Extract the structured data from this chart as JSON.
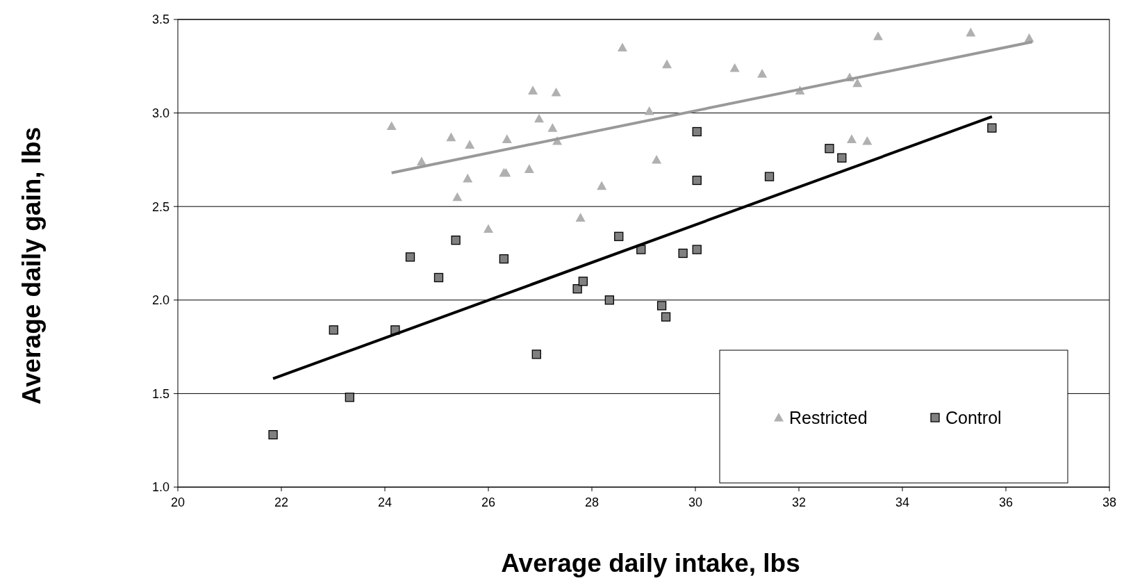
{
  "chart_data": {
    "type": "scatter",
    "xlabel": "Average daily intake, lbs",
    "ylabel": "Average daily gain, lbs",
    "xlim": [
      20,
      38
    ],
    "xticks": [
      20,
      22,
      24,
      26,
      28,
      30,
      32,
      34,
      36,
      38
    ],
    "ylim": [
      1.0,
      3.5
    ],
    "yticks": [
      {
        "value": 1.0,
        "label": "1.0"
      },
      {
        "value": 1.5,
        "label": "1.5"
      },
      {
        "value": 2.0,
        "label": "2.0"
      },
      {
        "value": 2.5,
        "label": "2.5"
      },
      {
        "value": 3.0,
        "label": "3.0"
      },
      {
        "value": 3.5,
        "label": "3.5"
      }
    ],
    "grid": "y",
    "legend": "bottom right",
    "series": [
      {
        "name": "Restricted",
        "marker": "triangle",
        "color": "#b0b0b0",
        "x": [
          24.13,
          24.71,
          25.28,
          25.4,
          25.6,
          25.64,
          26.0,
          26.3,
          26.36,
          26.34,
          26.79,
          26.86,
          26.98,
          27.24,
          27.31,
          27.33,
          27.78,
          28.19,
          28.59,
          29.11,
          29.25,
          29.45,
          30.76,
          31.29,
          32.02,
          32.98,
          33.02,
          33.13,
          33.32,
          33.53,
          35.32,
          36.45
        ],
        "values": [
          2.93,
          2.74,
          2.87,
          2.55,
          2.65,
          2.83,
          2.38,
          2.68,
          2.86,
          2.68,
          2.7,
          3.12,
          2.97,
          2.92,
          3.11,
          2.85,
          2.44,
          2.61,
          3.35,
          3.01,
          2.75,
          3.26,
          3.24,
          3.21,
          3.12,
          3.19,
          2.86,
          3.16,
          2.85,
          3.41,
          3.43,
          3.4
        ]
      },
      {
        "name": "Control",
        "marker": "square",
        "color": "#808080",
        "x": [
          21.84,
          23.01,
          23.32,
          24.2,
          24.49,
          25.04,
          25.37,
          26.3,
          26.93,
          27.72,
          27.83,
          28.34,
          28.52,
          28.95,
          29.35,
          29.43,
          29.76,
          30.03,
          30.03,
          30.03,
          31.43,
          32.59,
          32.83,
          35.73
        ],
        "values": [
          1.28,
          1.84,
          1.48,
          1.84,
          2.23,
          2.12,
          2.32,
          2.22,
          1.71,
          2.06,
          2.1,
          2.0,
          2.34,
          2.27,
          1.97,
          1.91,
          2.25,
          2.27,
          2.9,
          2.64,
          2.66,
          2.81,
          2.76,
          2.92
        ]
      },
      {
        "type": "line",
        "color": "#999999",
        "x": [
          24.13,
          36.51
        ],
        "values": [
          2.68,
          3.38
        ]
      },
      {
        "type": "line",
        "color": "#000000",
        "x": [
          21.84,
          35.73
        ],
        "values": [
          1.58,
          2.98
        ]
      }
    ]
  }
}
